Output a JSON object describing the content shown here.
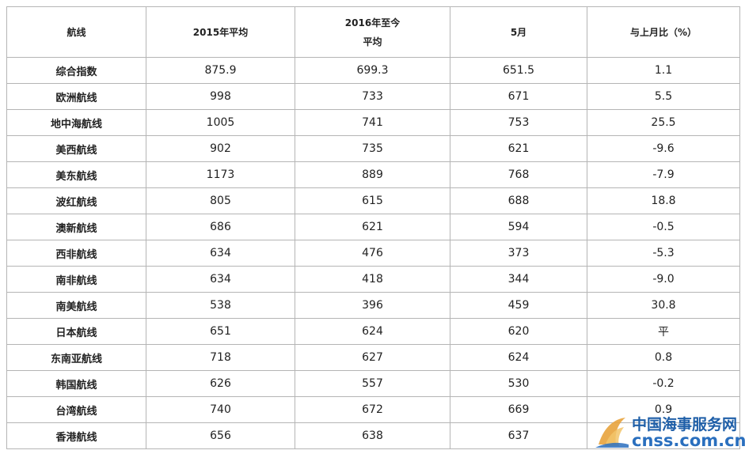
{
  "table": {
    "headers": {
      "route": "航线",
      "avg_2015": "2015年平均",
      "avg_2016_line1": "2016年至今",
      "avg_2016_line2": "平均",
      "may": "5月",
      "mom": "与上月比（%）"
    },
    "rows": [
      {
        "route": "综合指数",
        "avg_2015": "875.9",
        "avg_2016": "699.3",
        "may": "651.5",
        "mom": "1.1"
      },
      {
        "route": "欧洲航线",
        "avg_2015": "998",
        "avg_2016": "733",
        "may": "671",
        "mom": "5.5"
      },
      {
        "route": "地中海航线",
        "avg_2015": "1005",
        "avg_2016": "741",
        "may": "753",
        "mom": "25.5"
      },
      {
        "route": "美西航线",
        "avg_2015": "902",
        "avg_2016": "735",
        "may": "621",
        "mom": "-9.6"
      },
      {
        "route": "美东航线",
        "avg_2015": "1173",
        "avg_2016": "889",
        "may": "768",
        "mom": "-7.9"
      },
      {
        "route": "波红航线",
        "avg_2015": "805",
        "avg_2016": "615",
        "may": "688",
        "mom": "18.8"
      },
      {
        "route": "澳新航线",
        "avg_2015": "686",
        "avg_2016": "621",
        "may": "594",
        "mom": "-0.5"
      },
      {
        "route": "西非航线",
        "avg_2015": "634",
        "avg_2016": "476",
        "may": "373",
        "mom": "-5.3"
      },
      {
        "route": "南非航线",
        "avg_2015": "634",
        "avg_2016": "418",
        "may": "344",
        "mom": "-9.0"
      },
      {
        "route": "南美航线",
        "avg_2015": "538",
        "avg_2016": "396",
        "may": "459",
        "mom": "30.8"
      },
      {
        "route": "日本航线",
        "avg_2015": "651",
        "avg_2016": "624",
        "may": "620",
        "mom": "平"
      },
      {
        "route": "东南亚航线",
        "avg_2015": "718",
        "avg_2016": "627",
        "may": "624",
        "mom": "0.8"
      },
      {
        "route": "韩国航线",
        "avg_2015": "626",
        "avg_2016": "557",
        "may": "530",
        "mom": "-0.2"
      },
      {
        "route": "台湾航线",
        "avg_2015": "740",
        "avg_2016": "672",
        "may": "669",
        "mom": "0.9"
      },
      {
        "route": "香港航线",
        "avg_2015": "656",
        "avg_2016": "638",
        "may": "637",
        "mom": ""
      }
    ]
  },
  "watermark": {
    "name_cn": "中国海事服务网",
    "domain": "cnss.com.cn",
    "logo_icon": "sail-logo-icon",
    "colors": {
      "text": "#1f5fa8",
      "sail_orange": "#e8a33c",
      "sail_blue": "#2a6fbe"
    }
  }
}
